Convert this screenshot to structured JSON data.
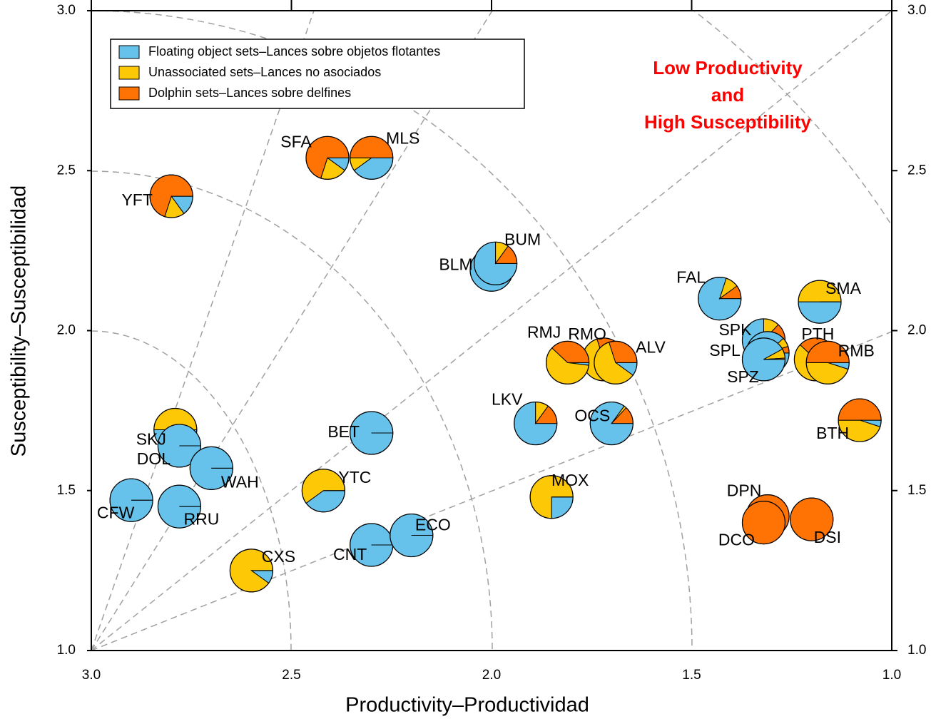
{
  "chart_data": {
    "type": "scatter",
    "x_label": "Productivity–Productividad",
    "y_label": "Susceptibility–Susceptibilidad",
    "annotation": [
      "Low Productivity",
      "and",
      "High Susceptibility"
    ],
    "annotation_color": "#ff0000",
    "xlim": [
      3,
      1
    ],
    "ylim": [
      1,
      3
    ],
    "xticks": [
      {
        "value": 3,
        "label": "3.0"
      },
      {
        "value": 2.5,
        "label": "2.5"
      },
      {
        "value": 2,
        "label": "2.0"
      },
      {
        "value": 1.5,
        "label": "1.5"
      },
      {
        "value": 1,
        "label": "1.0"
      }
    ],
    "yticks": [
      {
        "value": 1,
        "label": "1.0"
      },
      {
        "value": 1.5,
        "label": "1.5"
      },
      {
        "value": 2,
        "label": "2.0"
      },
      {
        "value": 2.5,
        "label": "2.5"
      },
      {
        "value": 3,
        "label": "3.0"
      }
    ],
    "legend": "upper left",
    "categories": [
      "YFT",
      "SFA",
      "MLS",
      "BLM",
      "BUM",
      "FAL",
      "SMA",
      "SPK",
      "SPL",
      "SPZ",
      "PTH",
      "RMB",
      "RMO",
      "ALV",
      "RMJ",
      "LKV",
      "OCS",
      "BTH",
      "BET",
      "SKJ",
      "DOL",
      "WAH",
      "CFW",
      "RRU",
      "YTC",
      "MOX",
      "CNT",
      "ECO",
      "CXS",
      "DPN",
      "DCO",
      "DSI"
    ],
    "x": [
      2.8,
      2.41,
      2.3,
      2.0,
      1.99,
      1.43,
      1.18,
      1.32,
      1.31,
      1.32,
      1.19,
      1.16,
      1.72,
      1.69,
      1.81,
      1.89,
      1.7,
      1.08,
      2.3,
      2.79,
      2.78,
      2.7,
      2.9,
      2.78,
      2.42,
      1.85,
      2.3,
      2.2,
      2.6,
      1.31,
      1.32,
      1.2
    ],
    "y": [
      2.42,
      2.54,
      2.54,
      2.19,
      2.21,
      2.1,
      2.09,
      1.97,
      1.93,
      1.91,
      1.91,
      1.9,
      1.91,
      1.9,
      1.9,
      1.71,
      1.71,
      1.72,
      1.68,
      1.69,
      1.64,
      1.57,
      1.47,
      1.45,
      1.5,
      1.48,
      1.33,
      1.36,
      1.25,
      1.42,
      1.4,
      1.41
    ],
    "series": [
      {
        "name": "Floating object sets–Lances sobre objetos flotantes",
        "color": "#66c2ea",
        "values": [
          15,
          10,
          40,
          100,
          75,
          80,
          50,
          75,
          88,
          92,
          2,
          5,
          5,
          10,
          2,
          75,
          85,
          5,
          100,
          50,
          100,
          100,
          100,
          100,
          40,
          25,
          100,
          100,
          10,
          0,
          0,
          0
        ]
      },
      {
        "name": "Unassociated sets–Lances no asociados",
        "color": "#fdc806",
        "values": [
          15,
          20,
          10,
          0,
          10,
          10,
          50,
          12,
          7,
          7,
          60,
          45,
          65,
          60,
          60,
          10,
          2,
          45,
          0,
          50,
          0,
          0,
          0,
          0,
          60,
          75,
          0,
          0,
          90,
          0,
          0,
          0
        ]
      },
      {
        "name": "Dolphin sets–Lances sobre delfines",
        "color": "#ff7305",
        "values": [
          70,
          70,
          50,
          0,
          15,
          10,
          0,
          13,
          5,
          1,
          38,
          50,
          30,
          30,
          38,
          15,
          13,
          50,
          0,
          0,
          0,
          0,
          0,
          0,
          0,
          0,
          0,
          0,
          0,
          100,
          100,
          100
        ]
      }
    ]
  }
}
